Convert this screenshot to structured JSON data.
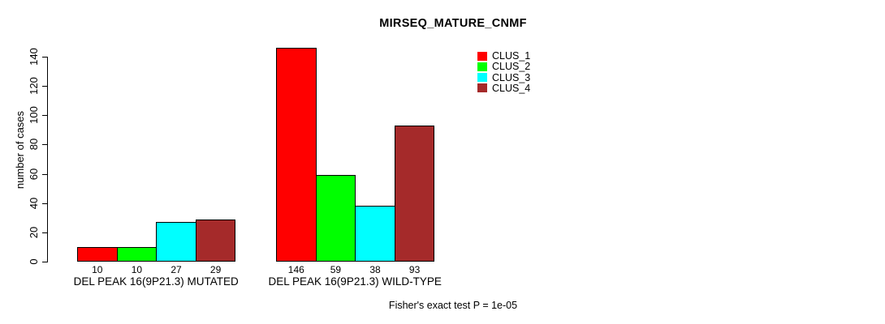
{
  "figure": {
    "background": "#ffffff"
  },
  "chart_data": {
    "type": "bar",
    "title": "MIRSEQ_MATURE_CNMF",
    "xlabel": "",
    "ylabel": "number of cases",
    "ylim": [
      0,
      150
    ],
    "yticks": [
      0,
      20,
      40,
      60,
      80,
      100,
      120,
      140
    ],
    "grid": false,
    "categories": [
      "DEL PEAK 16(9P21.3) MUTATED",
      "DEL PEAK 16(9P21.3) WILD-TYPE"
    ],
    "series": [
      {
        "name": "CLUS_1",
        "color": "#FF0000",
        "values": [
          10,
          146
        ]
      },
      {
        "name": "CLUS_2",
        "color": "#00FF00",
        "values": [
          10,
          59
        ]
      },
      {
        "name": "CLUS_3",
        "color": "#00FFFF",
        "values": [
          27,
          38
        ]
      },
      {
        "name": "CLUS_4",
        "color": "#A52A2A",
        "values": [
          29,
          93
        ]
      }
    ],
    "bar_value_labels": [
      [
        10,
        10,
        27,
        29
      ],
      [
        146,
        59,
        38,
        93
      ]
    ],
    "legend": {
      "position": "top-right",
      "entries": [
        "CLUS_1",
        "CLUS_2",
        "CLUS_3",
        "CLUS_4"
      ]
    },
    "annotation": "Fisher's exact test P = 1e-05",
    "axis_color": "#000000",
    "bar_border_color": "#000000"
  }
}
